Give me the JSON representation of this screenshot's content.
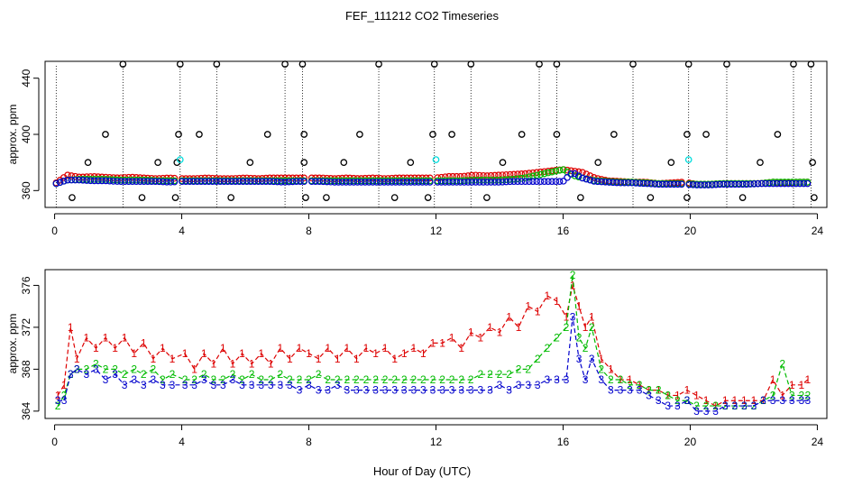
{
  "figure": {
    "title": "FEF_111212  CO2 Timeseries",
    "xlabel": "Hour of Day (UTC)"
  },
  "colors": {
    "series1": "#dd0000",
    "series2": "#00bb00",
    "series3": "#0000cc",
    "flag": "#000000",
    "highlight": "#00dddd"
  },
  "chart_data": [
    {
      "type": "scatter",
      "title": "",
      "xlabel": "",
      "ylabel": "approx. ppm",
      "xlim": [
        -0.3,
        24.3
      ],
      "ylim": [
        348,
        452
      ],
      "xticks": [
        0,
        4,
        8,
        12,
        16,
        20,
        24
      ],
      "yticks": [
        360,
        400,
        440
      ],
      "baseline_series": [
        {
          "name": "1",
          "x": [
            0.05,
            0.4,
            0.8,
            1.2,
            1.6,
            2.0,
            2.4,
            2.8,
            3.2,
            3.6,
            4.0,
            4.4,
            4.8,
            5.2,
            5.6,
            6.0,
            6.4,
            6.8,
            7.2,
            7.6,
            8.0,
            8.4,
            8.8,
            9.2,
            9.6,
            10.0,
            10.4,
            10.8,
            11.2,
            11.6,
            12.0,
            12.4,
            12.8,
            13.2,
            13.6,
            14.0,
            14.4,
            14.8,
            15.2,
            15.6,
            16.0,
            16.3,
            16.6,
            17.0,
            17.4,
            17.8,
            18.2,
            18.6,
            19.0,
            19.4,
            19.8,
            20.2,
            20.6,
            21.0,
            21.4,
            21.8,
            22.2,
            22.6,
            23.0,
            23.4,
            23.7
          ],
          "y": [
            365.5,
            371,
            369.5,
            370,
            369.5,
            369,
            369.5,
            369,
            368.5,
            369,
            368.5,
            368.5,
            369,
            368.5,
            368.5,
            369,
            368.5,
            369,
            369,
            369,
            369,
            369,
            368.5,
            369,
            368.5,
            369,
            368.5,
            369,
            369,
            369,
            369,
            370,
            370,
            371,
            370.5,
            371,
            371.5,
            372,
            373,
            374,
            375,
            374,
            373,
            369,
            367,
            366.5,
            366,
            366,
            365,
            365.5,
            366,
            364.5,
            364.5,
            365,
            365,
            365,
            365,
            366,
            365.5,
            366,
            366
          ]
        },
        {
          "name": "2",
          "x": [
            0.05,
            0.4,
            0.8,
            1.2,
            1.6,
            2.0,
            2.4,
            2.8,
            3.2,
            3.6,
            4.0,
            4.4,
            4.8,
            5.2,
            5.6,
            6.0,
            6.4,
            6.8,
            7.2,
            7.6,
            8.0,
            8.4,
            8.8,
            9.2,
            9.6,
            10.0,
            10.4,
            10.8,
            11.2,
            11.6,
            12.0,
            12.4,
            12.8,
            13.2,
            13.6,
            14.0,
            14.4,
            14.8,
            15.2,
            15.6,
            16.0,
            16.3,
            16.6,
            17.0,
            17.4,
            17.8,
            18.2,
            18.6,
            19.0,
            19.4,
            19.8,
            20.2,
            20.6,
            21.0,
            21.4,
            21.8,
            22.2,
            22.6,
            23.0,
            23.4,
            23.7
          ],
          "y": [
            365,
            367.5,
            368,
            368,
            368,
            367.5,
            367.5,
            367.5,
            367,
            367,
            367,
            367,
            367,
            367,
            367,
            367,
            367,
            367,
            367,
            367,
            367,
            367,
            367,
            367,
            367,
            367,
            367,
            367,
            367,
            367,
            367,
            367,
            367,
            367.5,
            367.5,
            367.5,
            368,
            369,
            371,
            373,
            375,
            371,
            369,
            367,
            366.5,
            366,
            366,
            365.5,
            365,
            365,
            365,
            364.5,
            364.5,
            365,
            365,
            365,
            365,
            366,
            366,
            366,
            366
          ]
        },
        {
          "name": "3",
          "x": [
            0.05,
            0.4,
            0.8,
            1.2,
            1.6,
            2.0,
            2.4,
            2.8,
            3.2,
            3.6,
            4.0,
            4.4,
            4.8,
            5.2,
            5.6,
            6.0,
            6.4,
            6.8,
            7.2,
            7.6,
            8.0,
            8.4,
            8.8,
            9.2,
            9.6,
            10.0,
            10.4,
            10.8,
            11.2,
            11.6,
            12.0,
            12.4,
            12.8,
            13.2,
            13.6,
            14.0,
            14.4,
            14.8,
            15.2,
            15.6,
            16.0,
            16.3,
            16.6,
            17.0,
            17.4,
            17.8,
            18.2,
            18.6,
            19.0,
            19.4,
            19.8,
            20.2,
            20.6,
            21.0,
            21.4,
            21.8,
            22.2,
            22.6,
            23.0,
            23.4,
            23.7
          ],
          "y": [
            365,
            367.5,
            367.5,
            367,
            367,
            366.5,
            366.5,
            366.5,
            366.5,
            366,
            366.5,
            366.5,
            366.5,
            366.5,
            366.5,
            366.5,
            366.5,
            366.5,
            366,
            366.5,
            366.5,
            366.5,
            366,
            366,
            366,
            366,
            366,
            366,
            366,
            366,
            366,
            366,
            366,
            366,
            366,
            366,
            366.5,
            366.5,
            366.5,
            366.5,
            366.5,
            373,
            369,
            366.5,
            366,
            365.5,
            365.5,
            365,
            364.5,
            364.5,
            364.5,
            364,
            364,
            364.5,
            364.5,
            364.5,
            365,
            365,
            365,
            365,
            365
          ]
        }
      ],
      "outliers": {
        "high": {
          "y": 450,
          "x": [
            2.15,
            3.95,
            5.1,
            7.25,
            7.8,
            10.2,
            11.95,
            13.1,
            15.25,
            15.8,
            18.2,
            19.95,
            21.15,
            23.25,
            23.8
          ]
        },
        "mid": {
          "y": 400,
          "x": [
            1.6,
            3.9,
            4.55,
            6.7,
            7.85,
            9.6,
            11.9,
            12.5,
            14.7,
            15.8,
            17.6,
            19.9,
            20.5,
            22.75
          ]
        },
        "low": {
          "y": 380,
          "x": [
            1.05,
            3.25,
            3.85,
            6.15,
            7.85,
            9.1,
            11.2,
            14.1,
            17.1,
            19.4,
            22.2,
            23.85
          ]
        },
        "bottom": {
          "y": 355,
          "x": [
            0.55,
            2.75,
            3.8,
            5.55,
            7.9,
            8.55,
            10.7,
            11.75,
            13.6,
            16.55,
            18.75,
            19.9,
            21.65,
            23.9
          ]
        },
        "highlight": {
          "y": 382,
          "x": [
            3.95,
            12.0,
            19.95
          ]
        }
      },
      "flag_lines": {
        "x": [
          0.05,
          2.15,
          3.95,
          5.1,
          7.25,
          7.8,
          10.2,
          11.95,
          13.1,
          15.25,
          15.8,
          18.2,
          19.95,
          21.15,
          23.25,
          23.8
        ],
        "y_from": 348,
        "y_to": 450
      }
    },
    {
      "type": "line",
      "title": "",
      "xlabel": "Hour of Day (UTC)",
      "ylabel": "approx. ppm",
      "xlim": [
        -0.3,
        24.3
      ],
      "ylim": [
        363.3,
        377.5
      ],
      "xticks": [
        0,
        4,
        8,
        12,
        16,
        20,
        24
      ],
      "yticks": [
        364,
        368,
        372,
        376
      ],
      "series": [
        {
          "name": "1",
          "label": "1",
          "x": [
            0.1,
            0.3,
            0.5,
            0.7,
            1.0,
            1.3,
            1.6,
            1.9,
            2.2,
            2.5,
            2.8,
            3.1,
            3.4,
            3.7,
            4.1,
            4.4,
            4.7,
            5.0,
            5.3,
            5.6,
            5.9,
            6.2,
            6.5,
            6.8,
            7.1,
            7.4,
            7.7,
            8.0,
            8.3,
            8.6,
            8.9,
            9.2,
            9.5,
            9.8,
            10.1,
            10.4,
            10.7,
            11.0,
            11.3,
            11.6,
            11.9,
            12.2,
            12.5,
            12.8,
            13.1,
            13.4,
            13.7,
            14.0,
            14.3,
            14.6,
            14.9,
            15.2,
            15.5,
            15.8,
            16.1,
            16.3,
            16.5,
            16.7,
            16.9,
            17.2,
            17.5,
            17.8,
            18.1,
            18.4,
            18.7,
            19.0,
            19.3,
            19.6,
            19.9,
            20.2,
            20.5,
            20.8,
            21.1,
            21.4,
            21.7,
            22.0,
            22.3,
            22.6,
            22.9,
            23.2,
            23.5,
            23.7
          ],
          "y": [
            365.5,
            366.5,
            372,
            369,
            371,
            370,
            371,
            370,
            371,
            369.5,
            370.5,
            369,
            370,
            369,
            369.5,
            368,
            369.5,
            368.5,
            370,
            368.5,
            369.5,
            368.5,
            369.5,
            368.5,
            370,
            369,
            370,
            369.5,
            369,
            370,
            369,
            370,
            369,
            370,
            369.5,
            370,
            369,
            369.5,
            370,
            369.5,
            370.5,
            370.5,
            371,
            370,
            371.5,
            371,
            372,
            371.5,
            373,
            372,
            374,
            373.5,
            375,
            374.5,
            373,
            376,
            374,
            372,
            373,
            369,
            368,
            367,
            367,
            366.5,
            366,
            366,
            365.5,
            365.5,
            366,
            365.5,
            365,
            364.5,
            365,
            365,
            365,
            365,
            365,
            367,
            365.5,
            366.5,
            366.5,
            367
          ]
        },
        {
          "name": "2",
          "label": "2",
          "x": [
            0.1,
            0.3,
            0.5,
            0.7,
            1.0,
            1.3,
            1.6,
            1.9,
            2.2,
            2.5,
            2.8,
            3.1,
            3.4,
            3.7,
            4.1,
            4.4,
            4.7,
            5.0,
            5.3,
            5.6,
            5.9,
            6.2,
            6.5,
            6.8,
            7.1,
            7.4,
            7.7,
            8.0,
            8.3,
            8.6,
            8.9,
            9.2,
            9.5,
            9.8,
            10.1,
            10.4,
            10.7,
            11.0,
            11.3,
            11.6,
            11.9,
            12.2,
            12.5,
            12.8,
            13.1,
            13.4,
            13.7,
            14.0,
            14.3,
            14.6,
            14.9,
            15.2,
            15.5,
            15.8,
            16.1,
            16.3,
            16.5,
            16.7,
            16.9,
            17.2,
            17.5,
            17.8,
            18.1,
            18.4,
            18.7,
            19.0,
            19.3,
            19.6,
            19.9,
            20.2,
            20.5,
            20.8,
            21.1,
            21.4,
            21.7,
            22.0,
            22.3,
            22.6,
            22.9,
            23.2,
            23.5,
            23.7
          ],
          "y": [
            364.5,
            365.5,
            367.5,
            368,
            368,
            368.5,
            368,
            368,
            367.5,
            368,
            367.5,
            368,
            367,
            367.5,
            367,
            367,
            367.5,
            367,
            367,
            367.5,
            367,
            367.5,
            367,
            367,
            367.5,
            367,
            367,
            367,
            367.5,
            367,
            367,
            367,
            367,
            367,
            367,
            367,
            367,
            367,
            367,
            367,
            367,
            367,
            367,
            367,
            367,
            367.5,
            367.5,
            367.5,
            367.5,
            368,
            368,
            369,
            370,
            371,
            372,
            377,
            371,
            370,
            372,
            368,
            367,
            367,
            366.5,
            366.5,
            366,
            366,
            365.5,
            365,
            365,
            364.5,
            364.5,
            364.5,
            364.5,
            364.5,
            364.5,
            364.5,
            365,
            365.5,
            368.5,
            365.5,
            365.5,
            365.5
          ]
        },
        {
          "name": "3",
          "label": "3",
          "x": [
            0.1,
            0.3,
            0.5,
            0.7,
            1.0,
            1.3,
            1.6,
            1.9,
            2.2,
            2.5,
            2.8,
            3.1,
            3.4,
            3.7,
            4.1,
            4.4,
            4.7,
            5.0,
            5.3,
            5.6,
            5.9,
            6.2,
            6.5,
            6.8,
            7.1,
            7.4,
            7.7,
            8.0,
            8.3,
            8.6,
            8.9,
            9.2,
            9.5,
            9.8,
            10.1,
            10.4,
            10.7,
            11.0,
            11.3,
            11.6,
            11.9,
            12.2,
            12.5,
            12.8,
            13.1,
            13.4,
            13.7,
            14.0,
            14.3,
            14.6,
            14.9,
            15.2,
            15.5,
            15.8,
            16.1,
            16.3,
            16.5,
            16.7,
            16.9,
            17.2,
            17.5,
            17.8,
            18.1,
            18.4,
            18.7,
            19.0,
            19.3,
            19.6,
            19.9,
            20.2,
            20.5,
            20.8,
            21.1,
            21.4,
            21.7,
            22.0,
            22.3,
            22.6,
            22.9,
            23.2,
            23.5,
            23.7
          ],
          "y": [
            365,
            365,
            367.5,
            368,
            367.5,
            368,
            367,
            367.5,
            366.5,
            367,
            366.5,
            367,
            366.5,
            366.5,
            366.5,
            366.5,
            367,
            366.5,
            366.5,
            367,
            366.5,
            366.5,
            366.5,
            366.5,
            366.5,
            366.5,
            366,
            366.5,
            366,
            366,
            366.5,
            366,
            366,
            366,
            366,
            366,
            366,
            366,
            366,
            366,
            366,
            366,
            366,
            366,
            366,
            366,
            366,
            366.5,
            366,
            366.5,
            366.5,
            366.5,
            367,
            367,
            367,
            373,
            369,
            367,
            369,
            367,
            366,
            366,
            366,
            366,
            365.5,
            365,
            364.5,
            364.5,
            365,
            364,
            364,
            364,
            364.5,
            364.5,
            364.5,
            364.5,
            365,
            365,
            365,
            365,
            365,
            365
          ]
        }
      ]
    }
  ]
}
